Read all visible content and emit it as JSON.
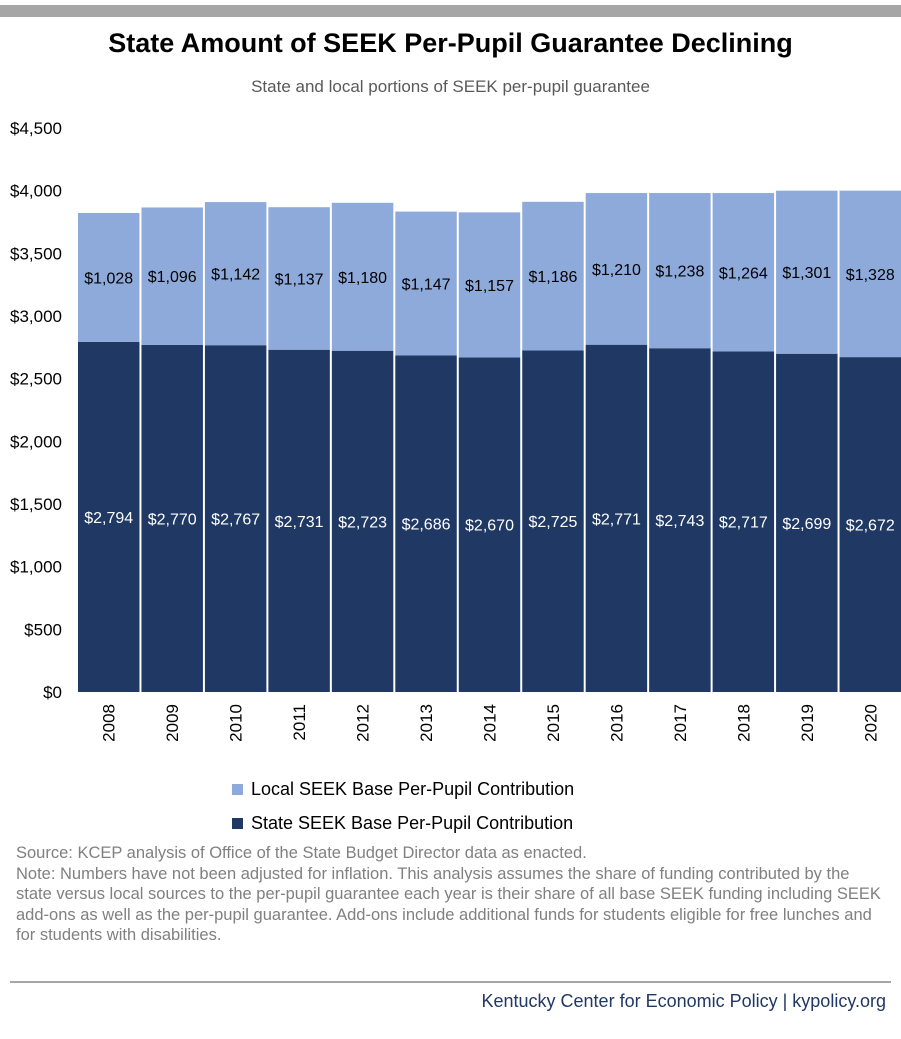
{
  "title": "State Amount of SEEK Per-Pupil Guarantee Declining",
  "subtitle": "State and local portions of SEEK per-pupil guarantee",
  "colors": {
    "local": "#8eaadb",
    "state": "#1f3864",
    "rule": "#a6a6a6",
    "footer_text": "#1f3864"
  },
  "chart_data": {
    "type": "bar",
    "stacked": true,
    "categories": [
      "2008",
      "2009",
      "2010",
      "2011",
      "2012",
      "2013",
      "2014",
      "2015",
      "2016",
      "2017",
      "2018",
      "2019",
      "2020"
    ],
    "series": [
      {
        "name": "State SEEK Base Per-Pupil Contribution",
        "values": [
          2794,
          2770,
          2767,
          2731,
          2723,
          2686,
          2670,
          2725,
          2771,
          2743,
          2717,
          2699,
          2672
        ],
        "labels": [
          "$2,794",
          "$2,770",
          "$2,767",
          "$2,731",
          "$2,723",
          "$2,686",
          "$2,670",
          "$2,725",
          "$2,771",
          "$2,743",
          "$2,717",
          "$2,699",
          "$2,672"
        ]
      },
      {
        "name": "Local SEEK Base Per-Pupil Contribution",
        "values": [
          1028,
          1096,
          1142,
          1137,
          1180,
          1147,
          1157,
          1186,
          1210,
          1238,
          1264,
          1301,
          1328
        ],
        "labels": [
          "$1,028",
          "$1,096",
          "$1,142",
          "$1,137",
          "$1,180",
          "$1,147",
          "$1,157",
          "$1,186",
          "$1,210",
          "$1,238",
          "$1,264",
          "$1,301",
          "$1,328"
        ]
      }
    ],
    "ylim": [
      0,
      4500
    ],
    "yticks": [
      0,
      500,
      1000,
      1500,
      2000,
      2500,
      3000,
      3500,
      4000,
      4500
    ],
    "ytick_labels": [
      "$0",
      "$500",
      "$1,000",
      "$1,500",
      "$2,000",
      "$2,500",
      "$3,000",
      "$3,500",
      "$4,000",
      "$4,500"
    ],
    "grid": false,
    "legend_position": "bottom"
  },
  "legend": {
    "local_label": "Local SEEK Base Per-Pupil Contribution",
    "state_label": "State SEEK Base Per-Pupil Contribution"
  },
  "source_note": {
    "source": "Source: KCEP analysis of Office of the State Budget Director data as enacted.",
    "note": "Note: Numbers have not been adjusted for inflation. This analysis assumes the share of funding contributed by the state versus local sources to the per-pupil guarantee each year is their share of all base SEEK funding including SEEK add-ons as well as the per-pupil guarantee. Add-ons include additional funds for students eligible for free lunches and for students with disabilities."
  },
  "footer": "Kentucky Center for Economic Policy | kypolicy.org"
}
